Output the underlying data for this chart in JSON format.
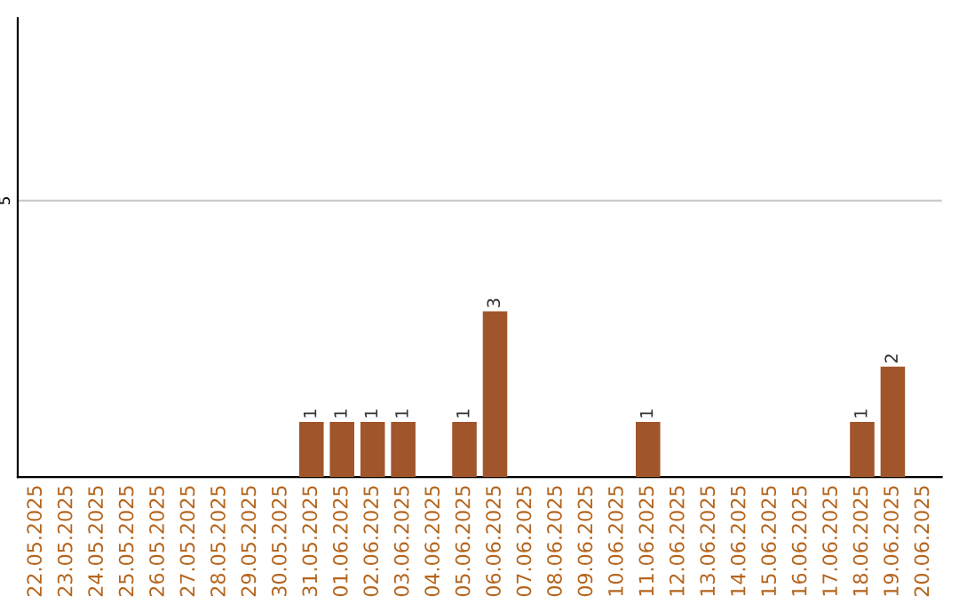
{
  "chart_data": {
    "type": "bar",
    "categories": [
      "22.05.2025",
      "23.05.2025",
      "24.05.2025",
      "25.05.2025",
      "26.05.2025",
      "27.05.2025",
      "28.05.2025",
      "29.05.2025",
      "30.05.2025",
      "31.05.2025",
      "01.06.2025",
      "02.06.2025",
      "03.06.2025",
      "04.06.2025",
      "05.06.2025",
      "06.06.2025",
      "07.06.2025",
      "08.06.2025",
      "09.06.2025",
      "10.06.2025",
      "11.06.2025",
      "12.06.2025",
      "13.06.2025",
      "14.06.2025",
      "15.06.2025",
      "16.06.2025",
      "17.06.2025",
      "18.06.2025",
      "19.06.2025",
      "20.06.2025"
    ],
    "values": [
      0,
      0,
      0,
      0,
      0,
      0,
      0,
      0,
      0,
      1,
      1,
      1,
      1,
      0,
      1,
      3,
      0,
      0,
      0,
      0,
      1,
      0,
      0,
      0,
      0,
      0,
      0,
      1,
      2,
      0
    ],
    "value_labels": [
      null,
      null,
      null,
      null,
      null,
      null,
      null,
      null,
      null,
      "1",
      "1",
      "1",
      "1",
      null,
      "1",
      "3",
      null,
      null,
      null,
      null,
      "1",
      null,
      null,
      null,
      null,
      null,
      null,
      "1",
      "2",
      null
    ],
    "color": "#a0562a",
    "ylim": [
      0,
      8.3
    ],
    "yticks": [
      5
    ],
    "grid": "y"
  }
}
